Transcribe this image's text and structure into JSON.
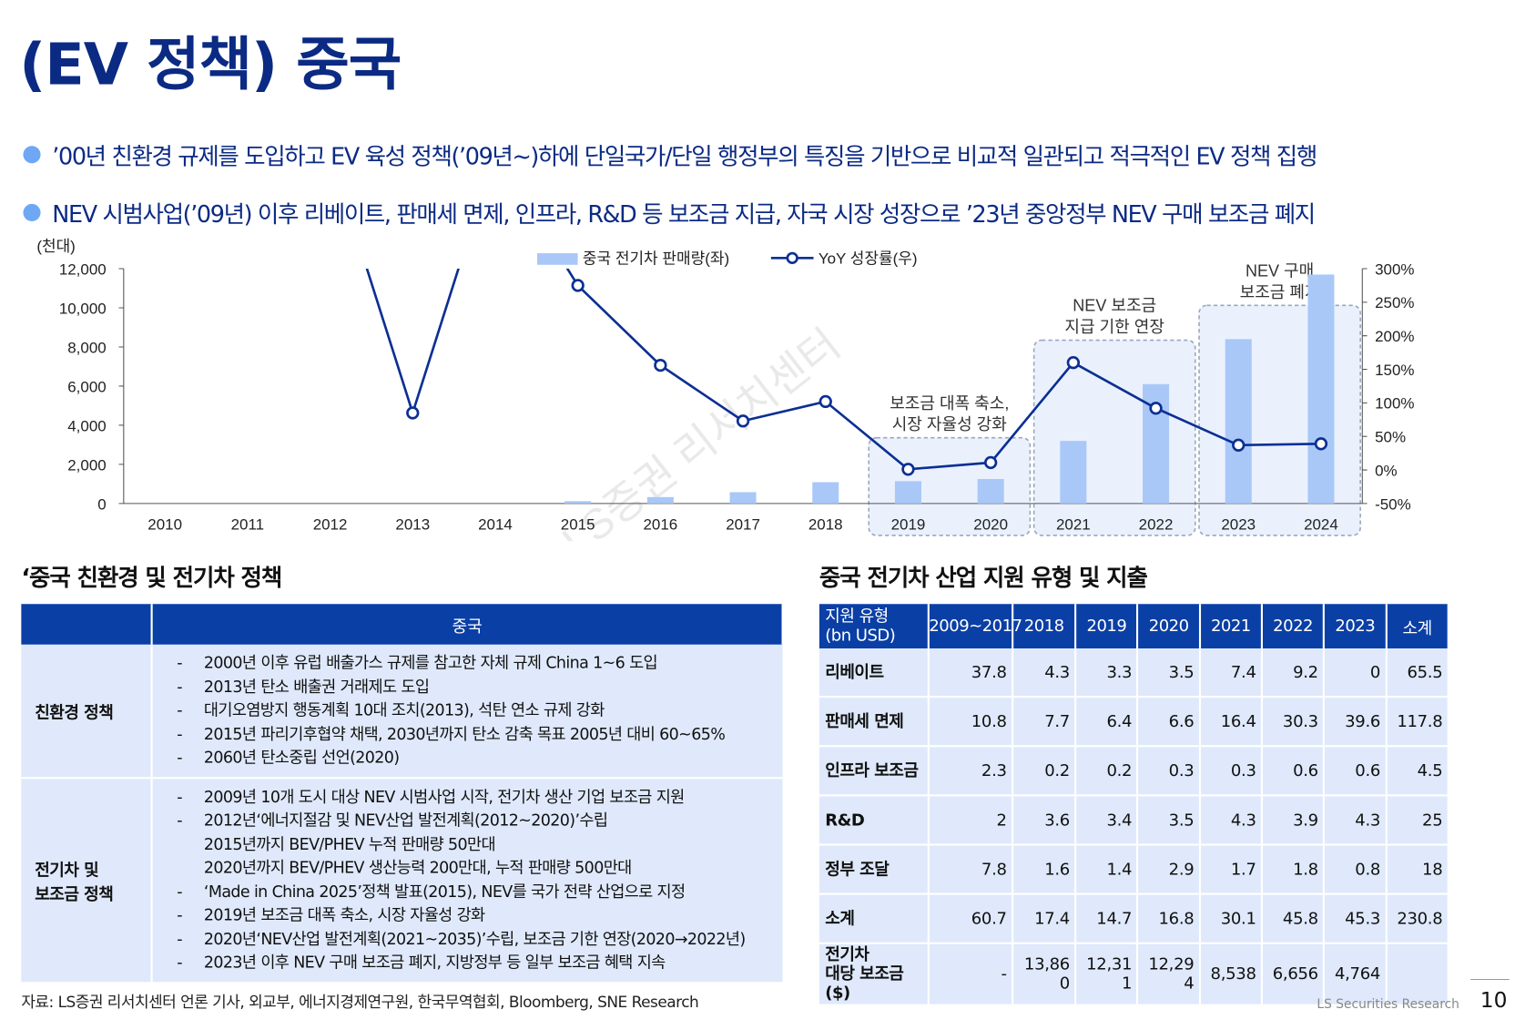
{
  "page": {
    "title": "(EV 정책) 중국",
    "bullets": [
      "’00년 친환경 규제를 도입하고 EV 육성 정책(’09년~)하에 단일국가/단일 행정부의 특징을 기반으로 비교적 일관되고 적극적인 EV 정책 집행",
      "NEV 시범사업(’09년) 이후 리베이트, 판매세 면제, 인프라, R&D 등 보조금 지급, 자국 시장 성장으로 ’23년 중앙정부 NEV 구매 보조금 폐지"
    ],
    "source": "자료:  LS증권 리서치센터 언론 기사, 외교부,  에너지경제연구원, 한국무역협회, Bloomberg, SNE Research",
    "footer": "LS Securities  Research",
    "page_number": "10",
    "colors": {
      "navy": "#0b2a83",
      "header_blue": "#0a3fa5",
      "bar": "#a9c8f7",
      "line": "#0b2f93",
      "cell": "#dfe9fb"
    }
  },
  "chart_data": {
    "type": "bar",
    "unit_label": "(천대)",
    "categories": [
      "2010",
      "2011",
      "2012",
      "2013",
      "2014",
      "2015",
      "2016",
      "2017",
      "2018",
      "2019",
      "2020",
      "2021",
      "2022",
      "2023",
      "2024"
    ],
    "series": [
      {
        "name": "중국 전기차 판매량(좌)",
        "type": "bar",
        "axis": "left",
        "values": [
          0,
          0,
          0,
          0,
          0,
          120,
          330,
          580,
          1090,
          1140,
          1250,
          3200,
          6100,
          8400,
          11700
        ]
      },
      {
        "name": "YoY 성장률(우)",
        "type": "line",
        "axis": "right",
        "values": [
          null,
          null,
          null,
          85,
          null,
          275,
          156,
          73,
          102,
          1,
          11,
          160,
          92,
          37,
          39
        ]
      }
    ],
    "line_offscale_points": [
      {
        "year": "2012",
        "note": "above 300%"
      },
      {
        "year": "2014",
        "note": "above 300%"
      }
    ],
    "y_left": {
      "ticks": [
        "0",
        "2,000",
        "4,000",
        "6,000",
        "8,000",
        "10,000",
        "12,000"
      ],
      "range": [
        0,
        12000
      ]
    },
    "y_right": {
      "ticks": [
        "-50%",
        "0%",
        "50%",
        "100%",
        "150%",
        "200%",
        "250%",
        "300%"
      ],
      "range": [
        -50,
        300
      ]
    },
    "annotations": [
      {
        "text": [
          "보조금 대폭 축소,",
          "시장 자율성 강화"
        ],
        "years": [
          "2019",
          "2020"
        ]
      },
      {
        "text": [
          "NEV 보조금",
          "지급 기한 연장"
        ],
        "years": [
          "2021",
          "2022"
        ]
      },
      {
        "text": [
          "NEV 구매",
          "보조금 폐지"
        ],
        "years": [
          "2023",
          "2024"
        ]
      }
    ],
    "watermark": "LS증권 리서치센터"
  },
  "policy": {
    "section_title": "‘중국 친환경 및 전기차 정책",
    "header": "중국",
    "rows": [
      {
        "category": [
          "친환경 정책"
        ],
        "items": [
          {
            "dash": true,
            "text": "2000년 이후 유럽 배출가스 규제를 참고한 자체 규제 China 1~6 도입"
          },
          {
            "dash": true,
            "text": "2013년 탄소 배출권 거래제도 도입"
          },
          {
            "dash": true,
            "text": "대기오염방지 행동계획 10대 조치(2013), 석탄 연소 규제 강화"
          },
          {
            "dash": true,
            "text": "2015년 파리기후협약 채택, 2030년까지 탄소 감축 목표 2005년 대비 60~65%"
          },
          {
            "dash": true,
            "text": "2060년 탄소중립 선언(2020)"
          }
        ]
      },
      {
        "category": [
          "전기차 및",
          "보조금 정책"
        ],
        "items": [
          {
            "dash": true,
            "text": "2009년 10개 도시 대상 NEV 시범사업 시작, 전기차 생산 기업 보조금 지원"
          },
          {
            "dash": true,
            "text": "2012년‘에너지절감 및 NEV산업 발전계획(2012~2020)’수립"
          },
          {
            "dash": false,
            "text": "2015년까지 BEV/PHEV 누적 판매량 50만대"
          },
          {
            "dash": false,
            "text": "2020년까지 BEV/PHEV 생산능력 200만대, 누적 판매량 500만대"
          },
          {
            "dash": true,
            "text": "‘Made in China 2025’정책 발표(2015), NEV를 국가 전략 산업으로 지정"
          },
          {
            "dash": true,
            "text": "2019년 보조금 대폭 축소, 시장 자율성 강화"
          },
          {
            "dash": true,
            "text": "2020년‘NEV산업 발전계획(2021~2035)’수립, 보조금 기한 연장(2020→2022년)"
          },
          {
            "dash": true,
            "text": "2023년 이후 NEV 구매 보조금 폐지, 지방정부 등 일부 보조금 혜택 지속"
          }
        ]
      }
    ]
  },
  "subsidy": {
    "section_title": "중국 전기차 산업 지원 유형 및 지출",
    "header_first": [
      "지원 유형",
      "(bn USD)"
    ],
    "headers": [
      "2009~2017",
      "2018",
      "2019",
      "2020",
      "2021",
      "2022",
      "2023",
      "소계"
    ],
    "rows": [
      {
        "label": [
          "리베이트"
        ],
        "values": [
          "37.8",
          "4.3",
          "3.3",
          "3.5",
          "7.4",
          "9.2",
          "0",
          "65.5"
        ]
      },
      {
        "label": [
          "판매세 면제"
        ],
        "values": [
          "10.8",
          "7.7",
          "6.4",
          "6.6",
          "16.4",
          "30.3",
          "39.6",
          "117.8"
        ]
      },
      {
        "label": [
          "인프라 보조금"
        ],
        "values": [
          "2.3",
          "0.2",
          "0.2",
          "0.3",
          "0.3",
          "0.6",
          "0.6",
          "4.5"
        ]
      },
      {
        "label": [
          "R&D"
        ],
        "values": [
          "2",
          "3.6",
          "3.4",
          "3.5",
          "4.3",
          "3.9",
          "4.3",
          "25"
        ]
      },
      {
        "label": [
          "정부 조달"
        ],
        "values": [
          "7.8",
          "1.6",
          "1.4",
          "2.9",
          "1.7",
          "1.8",
          "0.8",
          "18"
        ]
      },
      {
        "label": [
          "소계"
        ],
        "values": [
          "60.7",
          "17.4",
          "14.7",
          "16.8",
          "30.1",
          "45.8",
          "45.3",
          "230.8"
        ]
      },
      {
        "label": [
          "전기차",
          "대당 보조금($)"
        ],
        "values": [
          "-",
          [
            "13,86",
            "0"
          ],
          [
            "12,31",
            "1"
          ],
          [
            "12,29",
            "4"
          ],
          "8,538",
          "6,656",
          "4,764",
          ""
        ]
      }
    ]
  }
}
